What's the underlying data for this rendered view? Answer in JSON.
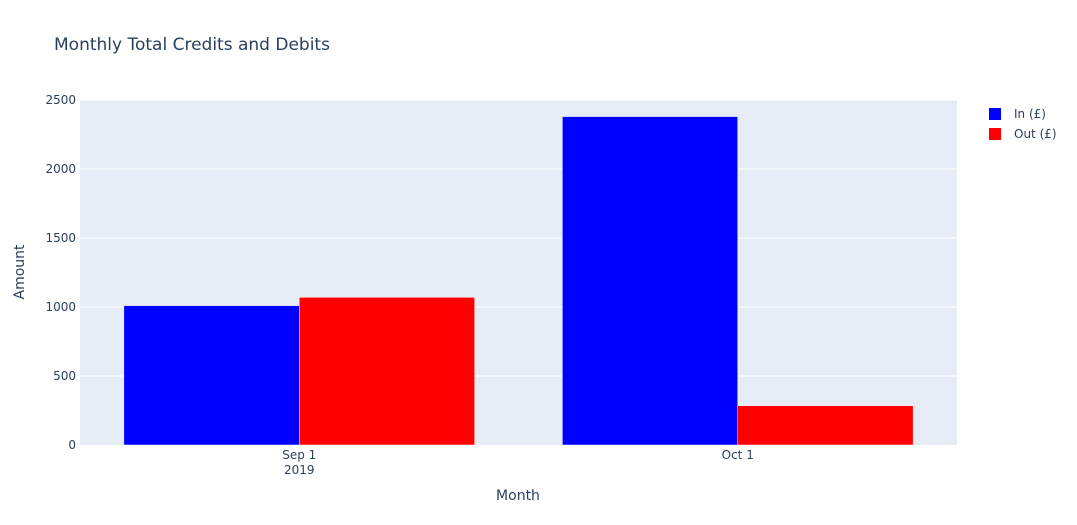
{
  "chart_data": {
    "type": "bar",
    "title": "Monthly Total Credits and Debits",
    "xlabel": "Month",
    "ylabel": "Amount",
    "categories": [
      "Sep 1 2019",
      "Oct 1"
    ],
    "category_tick_lines": [
      [
        "Sep 1",
        "2019"
      ],
      [
        "Oct 1"
      ]
    ],
    "ylim": [
      0,
      2500
    ],
    "yticks": [
      0,
      500,
      1000,
      1500,
      2000,
      2500
    ],
    "grid": true,
    "legend_position": "top-right",
    "series": [
      {
        "name": "In (£)",
        "color": "#0000ff",
        "values": [
          1010,
          2380
        ]
      },
      {
        "name": "Out (£)",
        "color": "#ff0000",
        "values": [
          1070,
          285
        ]
      }
    ],
    "plot_background": "#e5ecf6"
  }
}
